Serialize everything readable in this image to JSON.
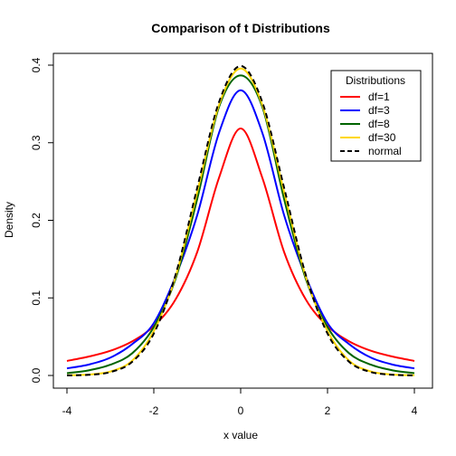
{
  "chart_data": {
    "type": "line",
    "title": "Comparison of t Distributions",
    "xlabel": "x value",
    "ylabel": "Density",
    "xlim": [
      -4,
      4
    ],
    "ylim": [
      0,
      0.4
    ],
    "x_ticks": [
      -4,
      -2,
      0,
      2,
      4
    ],
    "y_ticks": [
      0.0,
      0.1,
      0.2,
      0.3,
      0.4
    ],
    "x_tick_labels": [
      "-4",
      "-2",
      "0",
      "2",
      "4"
    ],
    "y_tick_labels": [
      "0.0",
      "0.1",
      "0.2",
      "0.3",
      "0.4"
    ],
    "legend": {
      "title": "Distributions",
      "position": "top-right",
      "entries": [
        "df=1",
        "df=3",
        "df=8",
        "df=30",
        "normal"
      ]
    },
    "x": [
      -4.0,
      -3.5,
      -3.0,
      -2.5,
      -2.0,
      -1.5,
      -1.0,
      -0.5,
      0.0,
      0.5,
      1.0,
      1.5,
      2.0,
      2.5,
      3.0,
      3.5,
      4.0
    ],
    "series": [
      {
        "name": "df=1",
        "color": "#ff0000",
        "dash": "solid",
        "values": [
          0.0187,
          0.0243,
          0.0318,
          0.0439,
          0.0637,
          0.0979,
          0.1592,
          0.2546,
          0.3183,
          0.2546,
          0.1592,
          0.0979,
          0.0637,
          0.0439,
          0.0318,
          0.0243,
          0.0187
        ]
      },
      {
        "name": "df=3",
        "color": "#0000ff",
        "dash": "solid",
        "values": [
          0.0092,
          0.014,
          0.023,
          0.0403,
          0.0675,
          0.1274,
          0.2067,
          0.3125,
          0.3676,
          0.3125,
          0.2067,
          0.1274,
          0.0675,
          0.0403,
          0.023,
          0.014,
          0.0092
        ]
      },
      {
        "name": "df=8",
        "color": "#006400",
        "dash": "solid",
        "values": [
          0.003,
          0.0066,
          0.0139,
          0.0285,
          0.0624,
          0.1243,
          0.2276,
          0.3458,
          0.3867,
          0.3458,
          0.2276,
          0.1243,
          0.0624,
          0.0285,
          0.0139,
          0.0066,
          0.003
        ]
      },
      {
        "name": "df=30",
        "color": "#ffd700",
        "dash": "solid",
        "values": [
          0.0003,
          0.0012,
          0.0051,
          0.019,
          0.0572,
          0.1271,
          0.2366,
          0.3485,
          0.3956,
          0.3485,
          0.2366,
          0.1271,
          0.0572,
          0.019,
          0.0051,
          0.0012,
          0.0003
        ]
      },
      {
        "name": "normal",
        "color": "#000000",
        "dash": "dashed",
        "values": [
          0.0001,
          0.0009,
          0.0044,
          0.0175,
          0.054,
          0.1295,
          0.242,
          0.3521,
          0.3989,
          0.3521,
          0.242,
          0.1295,
          0.054,
          0.0175,
          0.0044,
          0.0009,
          0.0001
        ]
      }
    ]
  }
}
